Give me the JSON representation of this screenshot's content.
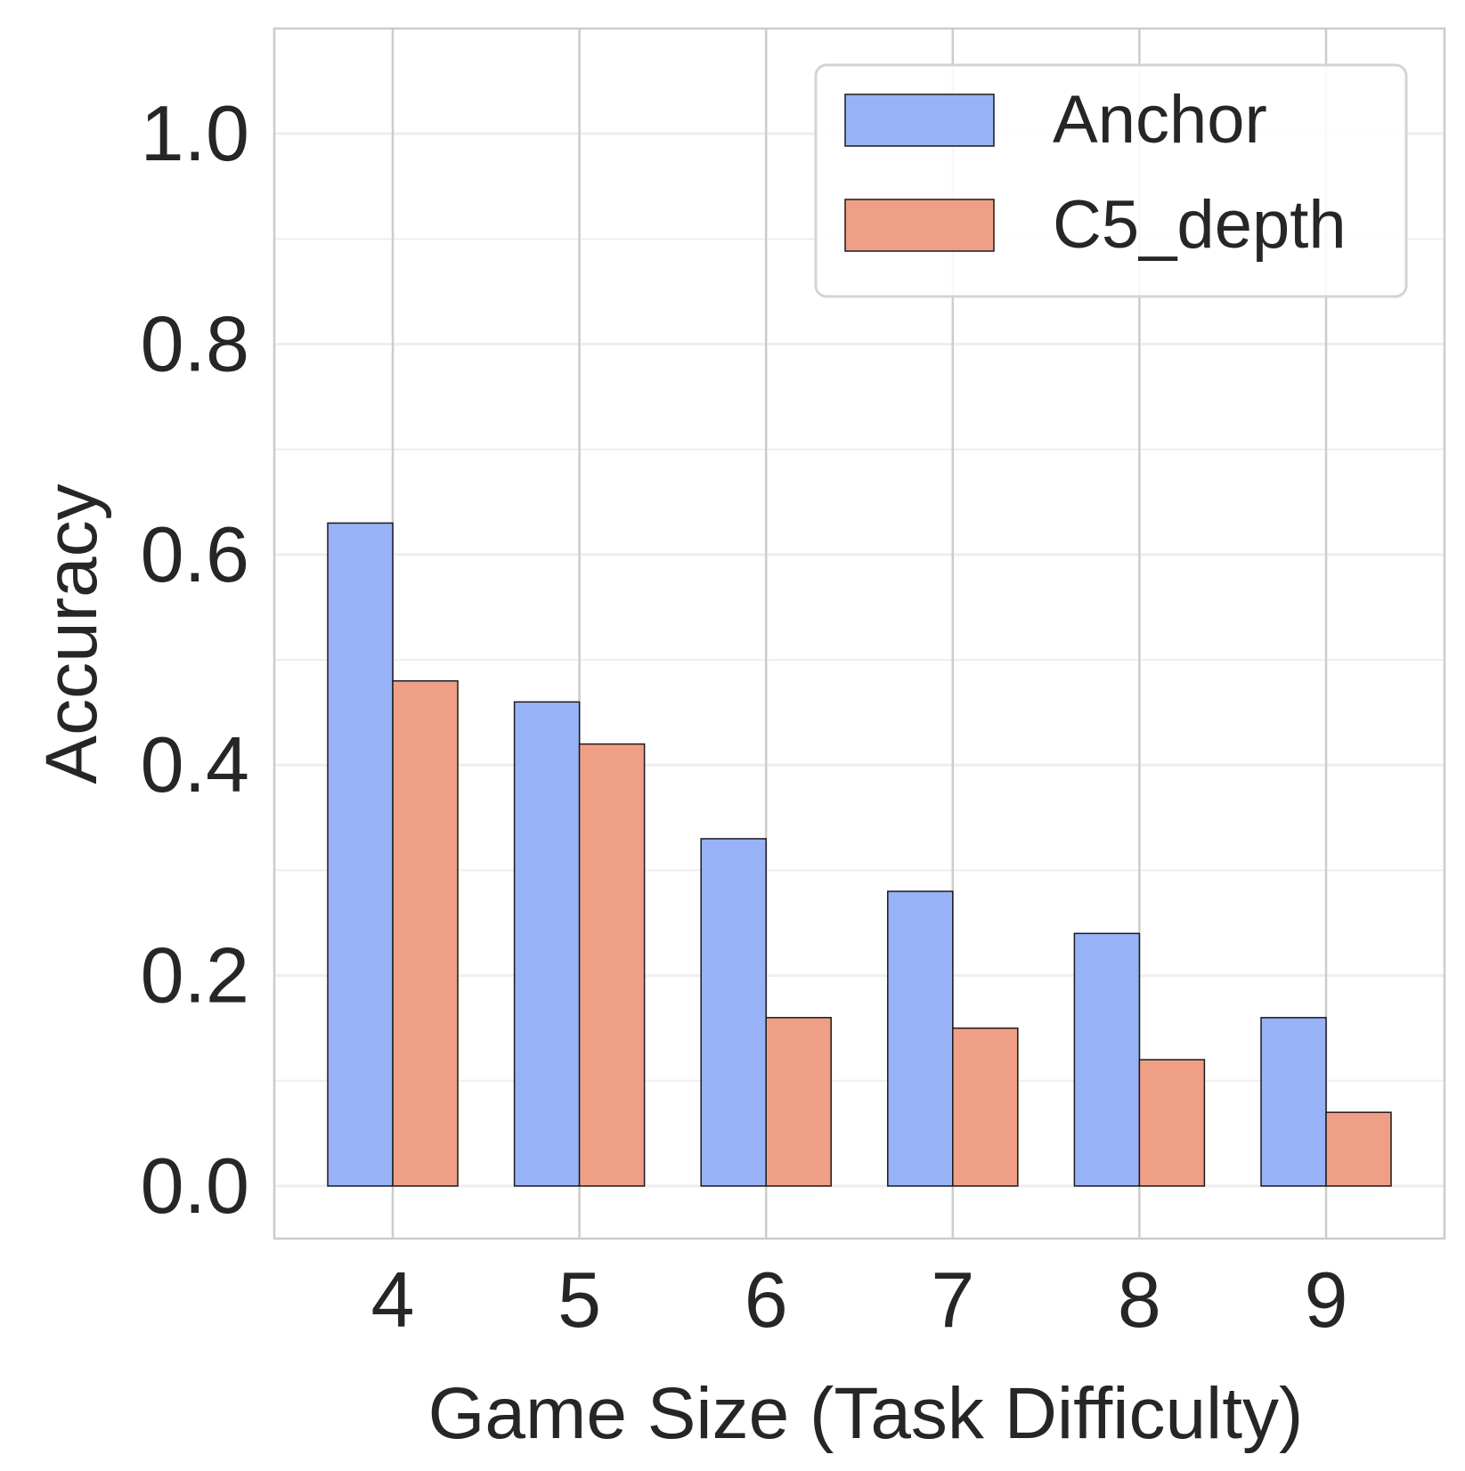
{
  "chart_data": {
    "type": "bar",
    "title": "",
    "xlabel": "Game Size (Task Difficulty)",
    "ylabel": "Accuracy",
    "categories": [
      "4",
      "5",
      "6",
      "7",
      "8",
      "9"
    ],
    "series": [
      {
        "name": "Anchor",
        "values": [
          0.63,
          0.46,
          0.33,
          0.28,
          0.24,
          0.16
        ],
        "color": "#98b2f8"
      },
      {
        "name": "C5_depth",
        "values": [
          0.48,
          0.42,
          0.16,
          0.15,
          0.12,
          0.07
        ],
        "color": "#f09f87"
      }
    ],
    "ylim": [
      -0.05,
      1.1
    ],
    "yticks": [
      0.0,
      0.2,
      0.4,
      0.6,
      0.8,
      1.0
    ],
    "ytick_labels": [
      "0.0",
      "0.2",
      "0.4",
      "0.6",
      "0.8",
      "1.0"
    ],
    "grid": true,
    "legend_position": "top-right",
    "colors": {
      "text": "#262626",
      "grid_major": "#cccccc",
      "grid_minor": "#eeeeee",
      "bar_edge": "#1a1a1a",
      "frame": "#cccccc"
    }
  }
}
